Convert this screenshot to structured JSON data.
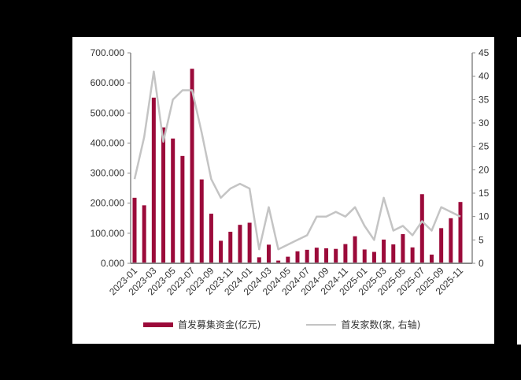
{
  "chart_data": {
    "type": "bar+line",
    "title": "",
    "categories": [
      "2023-01",
      "2023-02",
      "2023-03",
      "2023-04",
      "2023-05",
      "2023-06",
      "2023-07",
      "2023-08",
      "2023-09",
      "2023-10",
      "2023-11",
      "2023-12",
      "2024-01",
      "2024-02",
      "2024-03",
      "2024-04",
      "2024-05",
      "2024-06",
      "2024-07",
      "2024-08",
      "2024-09",
      "2024-10",
      "2024-11",
      "2024-12",
      "2025-01",
      "2025-02",
      "2025-03",
      "2025-04",
      "2025-05",
      "2025-06",
      "2025-07",
      "2025-08",
      "2025-09",
      "2025-10",
      "2025-11"
    ],
    "tick_labels": [
      "2023-01",
      "2023-03",
      "2023-05",
      "2023-07",
      "2023-09",
      "2023-11",
      "2024-01",
      "2024-03",
      "2024-05",
      "2024-07",
      "2024-09",
      "2024-11",
      "2025-01",
      "2025-03",
      "2025-05",
      "2025-07",
      "2025-09",
      "2025-11"
    ],
    "series": [
      {
        "name": "首发募集资金(亿元)",
        "type": "bar",
        "axis": "left",
        "color": "#9B0A3A",
        "values": [
          218,
          193,
          551,
          452,
          415,
          357,
          647,
          279,
          165,
          75,
          105,
          128,
          135,
          20,
          62,
          9,
          22,
          40,
          45,
          52,
          50,
          48,
          64,
          90,
          46,
          38,
          79,
          63,
          97,
          53,
          230,
          29,
          117,
          150,
          204
        ]
      },
      {
        "name": "首发家数(家, 右轴)",
        "type": "line",
        "axis": "right",
        "color": "#C4C4C4",
        "values": [
          18,
          27,
          41,
          26,
          35,
          37,
          37,
          28,
          18,
          14,
          16,
          17,
          16,
          3,
          12,
          3,
          4,
          5,
          6,
          10,
          10,
          11,
          10,
          12,
          8,
          5,
          14,
          7,
          8,
          6,
          9,
          7,
          12,
          11,
          10
        ]
      }
    ],
    "left_axis": {
      "ylim": [
        0,
        700
      ],
      "ticks": [
        "0.000",
        "100.000",
        "200.000",
        "300.000",
        "400.000",
        "500.000",
        "600.000",
        "700.000"
      ]
    },
    "right_axis": {
      "ylim": [
        0,
        45
      ],
      "ticks": [
        "0",
        "5",
        "10",
        "15",
        "20",
        "25",
        "30",
        "35",
        "40",
        "45"
      ]
    },
    "grid": false,
    "legend_position": "bottom"
  },
  "legend": {
    "bar_label": "首发募集资金(亿元)",
    "line_label": "首发家数(家, 右轴)"
  }
}
